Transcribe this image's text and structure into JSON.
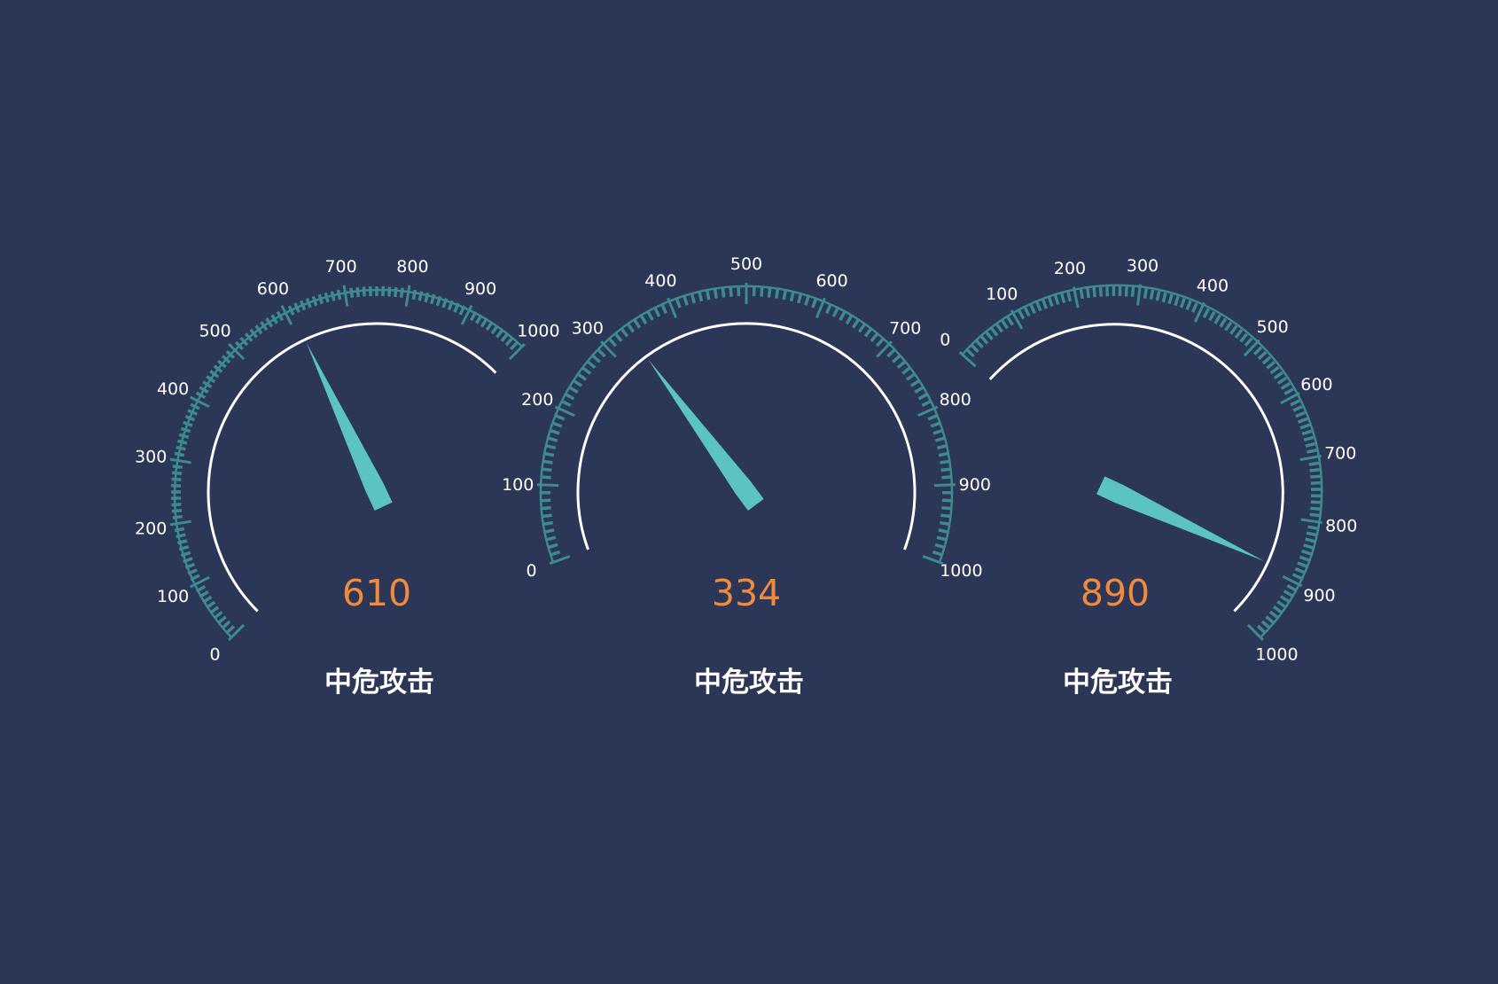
{
  "chart_data": [
    {
      "type": "gauge",
      "value": 610,
      "value_label": "610",
      "title": "中危攻击",
      "min": 0,
      "max": 1000,
      "start_angle_deg": 225,
      "end_angle_deg": 45,
      "major_ticks": [
        "0",
        "100",
        "200",
        "300",
        "400",
        "500",
        "600",
        "700",
        "800",
        "900",
        "1000"
      ]
    },
    {
      "type": "gauge",
      "value": 334,
      "value_label": "334",
      "title": "中危攻击",
      "min": 0,
      "max": 1000,
      "start_angle_deg": 200,
      "end_angle_deg": -20,
      "major_ticks": [
        "0",
        "100",
        "200",
        "300",
        "400",
        "500",
        "600",
        "700",
        "800",
        "900",
        "1000"
      ]
    },
    {
      "type": "gauge",
      "value": 890,
      "value_label": "890",
      "title": "中危攻击",
      "min": 0,
      "max": 1000,
      "start_angle_deg": 138,
      "end_angle_deg": -45,
      "major_ticks": [
        "0",
        "100",
        "200",
        "300",
        "400",
        "500",
        "600",
        "700",
        "800",
        "900",
        "1000"
      ]
    }
  ],
  "colors": {
    "background": "#2c3657",
    "tick": "#3d8a8f",
    "pointer": "#5bc3c1",
    "arc": "#ffffff",
    "value": "#ef8a3f",
    "label": "#ffffff"
  }
}
